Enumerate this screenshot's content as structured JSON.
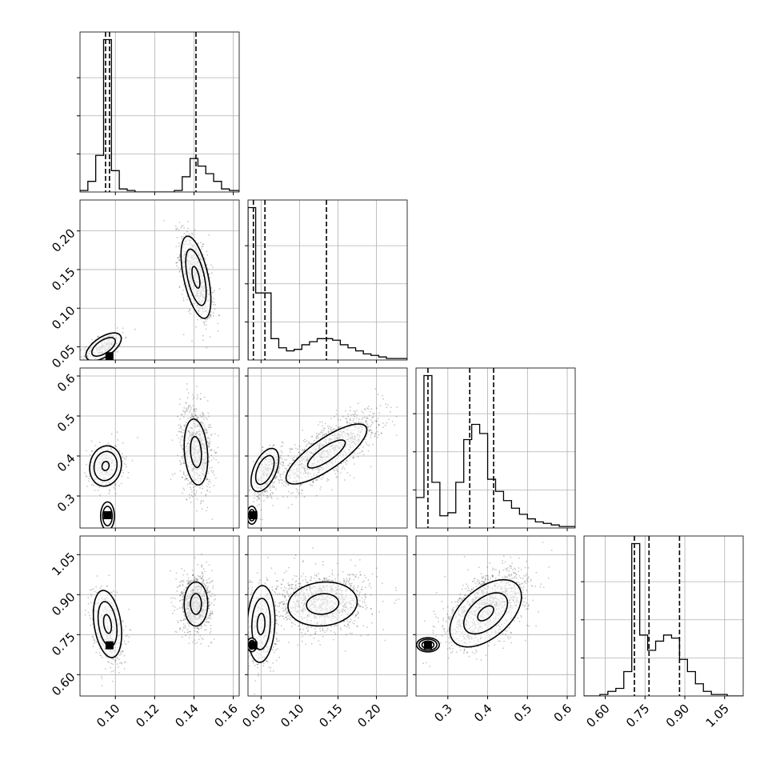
{
  "chart_data": {
    "type": "corner",
    "title": "",
    "n_params": 4,
    "params": [
      {
        "name": "",
        "range": [
          0.082,
          0.163
        ],
        "ticks": [
          0.1,
          0.12,
          0.14,
          0.16
        ],
        "tick_labels": [
          "0.10",
          "0.12",
          "0.14",
          "0.16"
        ],
        "quantiles": [
          0.095,
          0.097,
          0.141
        ],
        "hist": {
          "bins": [
            0.082,
            0.086,
            0.09,
            0.094,
            0.098,
            0.102,
            0.106,
            0.11,
            0.114,
            0.118,
            0.122,
            0.126,
            0.13,
            0.134,
            0.138,
            0.142,
            0.146,
            0.15,
            0.154,
            0.158,
            0.163
          ],
          "counts": [
            0.01,
            0.07,
            0.24,
            1.0,
            0.14,
            0.02,
            0.01,
            0,
            0,
            0,
            0,
            0,
            0.01,
            0.1,
            0.22,
            0.17,
            0.12,
            0.07,
            0.02,
            0.01
          ]
        }
      },
      {
        "name": "",
        "range": [
          0.033,
          0.24
        ],
        "ticks": [
          0.05,
          0.1,
          0.15,
          0.2
        ],
        "tick_labels": [
          "0.05",
          "0.10",
          "0.15",
          "0.20"
        ],
        "quantiles": [
          0.04,
          0.055,
          0.135
        ],
        "hist": {
          "bins": [
            0.033,
            0.043,
            0.053,
            0.063,
            0.073,
            0.083,
            0.093,
            0.103,
            0.113,
            0.123,
            0.133,
            0.143,
            0.153,
            0.163,
            0.173,
            0.183,
            0.193,
            0.203,
            0.213,
            0.223,
            0.24
          ],
          "counts": [
            1.0,
            0.44,
            0.44,
            0.14,
            0.08,
            0.06,
            0.07,
            0.1,
            0.12,
            0.14,
            0.14,
            0.13,
            0.1,
            0.08,
            0.06,
            0.04,
            0.03,
            0.02,
            0.01,
            0.01
          ]
        }
      },
      {
        "name": "",
        "range": [
          0.22,
          0.62
        ],
        "ticks": [
          0.3,
          0.4,
          0.5,
          0.6
        ],
        "tick_labels": [
          "0.3",
          "0.4",
          "0.5",
          "0.6"
        ],
        "quantiles": [
          0.25,
          0.355,
          0.415
        ],
        "hist": {
          "bins": [
            0.22,
            0.24,
            0.26,
            0.28,
            0.3,
            0.32,
            0.34,
            0.36,
            0.38,
            0.4,
            0.42,
            0.44,
            0.46,
            0.48,
            0.5,
            0.52,
            0.54,
            0.56,
            0.58,
            0.6,
            0.62
          ],
          "counts": [
            0.2,
            1.0,
            0.3,
            0.08,
            0.1,
            0.3,
            0.58,
            0.68,
            0.62,
            0.32,
            0.24,
            0.18,
            0.13,
            0.09,
            0.06,
            0.04,
            0.03,
            0.02,
            0.01,
            0.01
          ]
        }
      },
      {
        "name": "",
        "range": [
          0.52,
          1.12
        ],
        "ticks": [
          0.6,
          0.75,
          0.9,
          1.05
        ],
        "tick_labels": [
          "0.60",
          "0.75",
          "0.90",
          "1.05"
        ],
        "quantiles": [
          0.71,
          0.765,
          0.88
        ],
        "hist": {
          "bins": [
            0.52,
            0.55,
            0.58,
            0.61,
            0.64,
            0.67,
            0.7,
            0.73,
            0.76,
            0.79,
            0.82,
            0.85,
            0.88,
            0.91,
            0.94,
            0.97,
            1.0,
            1.03,
            1.06,
            1.09,
            1.12
          ],
          "counts": [
            0,
            0,
            0.01,
            0.03,
            0.05,
            0.16,
            1.0,
            0.4,
            0.3,
            0.36,
            0.4,
            0.38,
            0.24,
            0.16,
            0.08,
            0.03,
            0.01,
            0.01,
            0,
            0
          ]
        }
      }
    ],
    "panels_2d": [
      {
        "row": 1,
        "col": 0,
        "clusters": [
          {
            "cx": 0.141,
            "cy": 0.14,
            "sx": 0.004,
            "sy": 0.028,
            "rho": -0.55,
            "n": 900
          },
          {
            "cx": 0.094,
            "cy": 0.05,
            "sx": 0.005,
            "sy": 0.01,
            "rho": 0.6,
            "n": 350
          }
        ],
        "contours": [
          {
            "cx": 0.141,
            "cy": 0.14,
            "sx": 0.004,
            "sy": 0.028,
            "rho": -0.55,
            "levels": [
              0.5,
              1.3,
              1.9
            ]
          },
          {
            "cx": 0.094,
            "cy": 0.05,
            "sx": 0.005,
            "sy": 0.01,
            "rho": 0.6,
            "levels": [
              1.2,
              1.8
            ]
          }
        ],
        "markers": [
          {
            "x": 0.097,
            "y": 0.038
          }
        ]
      },
      {
        "row": 2,
        "col": 0,
        "clusters": [
          {
            "cx": 0.141,
            "cy": 0.42,
            "sx": 0.004,
            "sy": 0.055,
            "rho": -0.2,
            "n": 900
          },
          {
            "cx": 0.095,
            "cy": 0.375,
            "sx": 0.0045,
            "sy": 0.028,
            "rho": 0.1,
            "n": 350
          }
        ],
        "contours": [
          {
            "cx": 0.141,
            "cy": 0.41,
            "sx": 0.004,
            "sy": 0.055,
            "rho": -0.2,
            "levels": [
              0.7,
              1.5
            ]
          },
          {
            "cx": 0.095,
            "cy": 0.375,
            "sx": 0.0045,
            "sy": 0.028,
            "rho": 0.1,
            "levels": [
              0.4,
              1.3,
              1.8
            ]
          },
          {
            "cx": 0.096,
            "cy": 0.25,
            "sx": 0.0022,
            "sy": 0.022,
            "rho": 0.0,
            "levels": [
              1.1,
              1.6
            ]
          }
        ],
        "markers": [
          {
            "x": 0.096,
            "y": 0.252
          }
        ]
      },
      {
        "row": 2,
        "col": 1,
        "clusters": [
          {
            "cx": 0.135,
            "cy": 0.41,
            "sx": 0.035,
            "sy": 0.05,
            "rho": 0.8,
            "n": 1200
          },
          {
            "cx": 0.058,
            "cy": 0.36,
            "sx": 0.01,
            "sy": 0.03,
            "rho": 0.5,
            "n": 350
          }
        ],
        "contours": [
          {
            "cx": 0.135,
            "cy": 0.405,
            "sx": 0.035,
            "sy": 0.05,
            "rho": 0.8,
            "levels": [
              0.7,
              1.5
            ]
          },
          {
            "cx": 0.055,
            "cy": 0.365,
            "sx": 0.01,
            "sy": 0.03,
            "rho": 0.5,
            "levels": [
              1.2,
              1.8
            ]
          },
          {
            "cx": 0.038,
            "cy": 0.252,
            "sx": 0.004,
            "sy": 0.014,
            "rho": 0.0,
            "levels": [
              1.0,
              1.6
            ]
          }
        ],
        "markers": [
          {
            "x": 0.04,
            "y": 0.252
          }
        ]
      },
      {
        "row": 3,
        "col": 0,
        "clusters": [
          {
            "cx": 0.141,
            "cy": 0.87,
            "sx": 0.004,
            "sy": 0.055,
            "rho": 0.0,
            "n": 900
          },
          {
            "cx": 0.096,
            "cy": 0.78,
            "sx": 0.004,
            "sy": 0.07,
            "rho": -0.3,
            "n": 500
          }
        ],
        "contours": [
          {
            "cx": 0.141,
            "cy": 0.865,
            "sx": 0.004,
            "sy": 0.055,
            "rho": 0.0,
            "levels": [
              0.7,
              1.5
            ]
          },
          {
            "cx": 0.096,
            "cy": 0.79,
            "sx": 0.004,
            "sy": 0.07,
            "rho": -0.3,
            "levels": [
              0.5,
              1.2,
              1.8
            ]
          }
        ],
        "markers": [
          {
            "x": 0.097,
            "y": 0.71
          }
        ]
      },
      {
        "row": 3,
        "col": 1,
        "clusters": [
          {
            "cx": 0.13,
            "cy": 0.87,
            "sx": 0.03,
            "sy": 0.055,
            "rho": 0.1,
            "n": 1200
          },
          {
            "cx": 0.05,
            "cy": 0.78,
            "sx": 0.01,
            "sy": 0.08,
            "rho": 0.1,
            "n": 500
          }
        ],
        "contours": [
          {
            "cx": 0.13,
            "cy": 0.865,
            "sx": 0.03,
            "sy": 0.055,
            "rho": 0.1,
            "levels": [
              0.7,
              1.5
            ]
          },
          {
            "cx": 0.05,
            "cy": 0.79,
            "sx": 0.01,
            "sy": 0.08,
            "rho": 0.1,
            "levels": [
              0.5,
              1.2,
              1.8
            ]
          },
          {
            "cx": 0.038,
            "cy": 0.712,
            "sx": 0.004,
            "sy": 0.016,
            "rho": 0.0,
            "levels": [
              1.0,
              1.6
            ]
          }
        ],
        "markers": [
          {
            "x": 0.04,
            "y": 0.71
          }
        ]
      },
      {
        "row": 3,
        "col": 2,
        "clusters": [
          {
            "cx": 0.4,
            "cy": 0.85,
            "sx": 0.05,
            "sy": 0.07,
            "rho": 0.5,
            "n": 1500
          }
        ],
        "contours": [
          {
            "cx": 0.395,
            "cy": 0.83,
            "sx": 0.05,
            "sy": 0.07,
            "rho": 0.5,
            "levels": [
              0.4,
              1.1,
              1.8
            ]
          },
          {
            "cx": 0.25,
            "cy": 0.712,
            "sx": 0.015,
            "sy": 0.014,
            "rho": 0.0,
            "levels": [
              1.0,
              1.5,
              1.9
            ]
          }
        ],
        "markers": [
          {
            "x": 0.25,
            "y": 0.71
          }
        ]
      }
    ]
  }
}
